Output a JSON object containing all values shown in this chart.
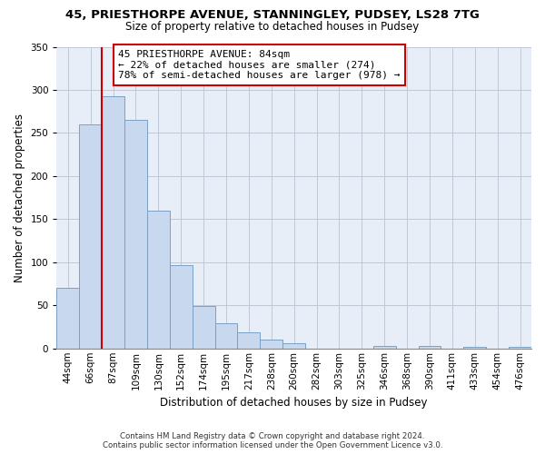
{
  "title": "45, PRIESTHORPE AVENUE, STANNINGLEY, PUDSEY, LS28 7TG",
  "subtitle": "Size of property relative to detached houses in Pudsey",
  "xlabel": "Distribution of detached houses by size in Pudsey",
  "ylabel": "Number of detached properties",
  "bar_labels": [
    "44sqm",
    "66sqm",
    "87sqm",
    "109sqm",
    "130sqm",
    "152sqm",
    "174sqm",
    "195sqm",
    "217sqm",
    "238sqm",
    "260sqm",
    "282sqm",
    "303sqm",
    "325sqm",
    "346sqm",
    "368sqm",
    "390sqm",
    "411sqm",
    "433sqm",
    "454sqm",
    "476sqm"
  ],
  "bar_values": [
    70,
    260,
    293,
    265,
    160,
    97,
    49,
    29,
    19,
    10,
    6,
    0,
    0,
    0,
    3,
    0,
    3,
    0,
    2,
    0,
    2
  ],
  "bar_color": "#c8d8ee",
  "bar_edge_color": "#7aa0c4",
  "bar_linewidth": 0.7,
  "plot_bg_color": "#e8eef8",
  "vline_x_index": 2,
  "vline_color": "#cc0000",
  "vline_linewidth": 1.5,
  "ylim": [
    0,
    350
  ],
  "yticks": [
    0,
    50,
    100,
    150,
    200,
    250,
    300,
    350
  ],
  "annotation_text_line1": "45 PRIESTHORPE AVENUE: 84sqm",
  "annotation_text_line2": "← 22% of detached houses are smaller (274)",
  "annotation_text_line3": "78% of semi-detached houses are larger (978) →",
  "annotation_box_edge": "#cc0000",
  "footer_line1": "Contains HM Land Registry data © Crown copyright and database right 2024.",
  "footer_line2": "Contains public sector information licensed under the Open Government Licence v3.0.",
  "background_color": "#ffffff",
  "grid_color": "#c0c8d8",
  "title_fontsize": 9.5,
  "subtitle_fontsize": 8.5,
  "axis_label_fontsize": 8.5,
  "tick_fontsize": 7.5
}
